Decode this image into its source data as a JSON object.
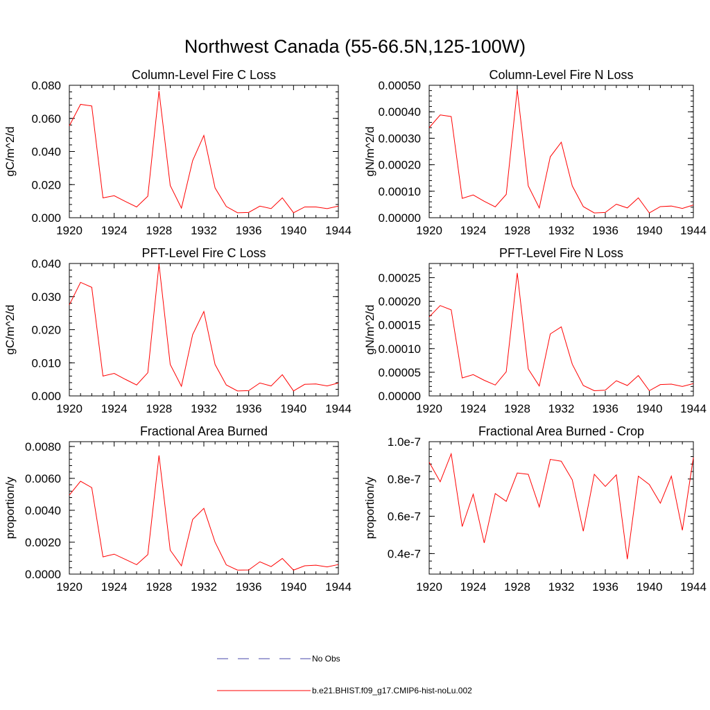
{
  "figure_title": "Northwest Canada (55-66.5N,125-100W)",
  "chart_data": [
    {
      "type": "line",
      "title": "Column-Level Fire C Loss",
      "xlabel": "",
      "ylabel": "gC/m^2/d",
      "xlim": [
        1920,
        1944
      ],
      "ylim": [
        0,
        0.08
      ],
      "xticks": [
        "1920",
        "1924",
        "1928",
        "1932",
        "1936",
        "1940",
        "1944"
      ],
      "yticks": [
        0,
        0.02,
        0.04,
        0.06,
        0.08
      ],
      "ytick_labels": [
        "0.000",
        "0.020",
        "0.040",
        "0.060",
        "0.080"
      ],
      "x": [
        1920,
        1921,
        1922,
        1923,
        1924,
        1925,
        1926,
        1927,
        1928,
        1929,
        1930,
        1931,
        1932,
        1933,
        1934,
        1935,
        1936,
        1937,
        1938,
        1939,
        1940,
        1941,
        1942,
        1943,
        1944
      ],
      "series": [
        {
          "name": "b.e21.BHIST.f09_g17.CMIP6-hist-noLu.002",
          "color": "#ff0000",
          "values": [
            0.0555,
            0.0685,
            0.0675,
            0.012,
            0.0133,
            0.0098,
            0.0065,
            0.013,
            0.0765,
            0.0195,
            0.0058,
            0.0345,
            0.0497,
            0.018,
            0.0068,
            0.003,
            0.0032,
            0.007,
            0.0055,
            0.012,
            0.003,
            0.0065,
            0.0065,
            0.0055,
            0.007
          ]
        }
      ]
    },
    {
      "type": "line",
      "title": "Column-Level Fire N Loss",
      "xlabel": "",
      "ylabel": "gN/m^2/d",
      "xlim": [
        1920,
        1944
      ],
      "ylim": [
        0,
        0.0005
      ],
      "xticks": [
        "1920",
        "1924",
        "1928",
        "1932",
        "1936",
        "1940",
        "1944"
      ],
      "yticks": [
        0,
        0.0001,
        0.0002,
        0.0003,
        0.0004,
        0.0005
      ],
      "ytick_labels": [
        "0.00000",
        "0.00010",
        "0.00020",
        "0.00030",
        "0.00040",
        "0.00050"
      ],
      "x": [
        1920,
        1921,
        1922,
        1923,
        1924,
        1925,
        1926,
        1927,
        1928,
        1929,
        1930,
        1931,
        1932,
        1933,
        1934,
        1935,
        1936,
        1937,
        1938,
        1939,
        1940,
        1941,
        1942,
        1943,
        1944
      ],
      "series": [
        {
          "name": "b.e21.BHIST.f09_g17.CMIP6-hist-noLu.002",
          "color": "#ff0000",
          "values": [
            0.00034,
            0.000388,
            0.000382,
            7.3e-05,
            8.6e-05,
            6.2e-05,
            4.1e-05,
            8.8e-05,
            0.000484,
            0.00012,
            3.7e-05,
            0.00023,
            0.000285,
            0.00012,
            4.2e-05,
            1.8e-05,
            2e-05,
            5.1e-05,
            3.7e-05,
            7.5e-05,
            1.8e-05,
            4.2e-05,
            4.4e-05,
            3.5e-05,
            4.8e-05
          ]
        }
      ]
    },
    {
      "type": "line",
      "title": "PFT-Level Fire C Loss",
      "xlabel": "",
      "ylabel": "gC/m^2/d",
      "xlim": [
        1920,
        1944
      ],
      "ylim": [
        0,
        0.04
      ],
      "xticks": [
        "1920",
        "1924",
        "1928",
        "1932",
        "1936",
        "1940",
        "1944"
      ],
      "yticks": [
        0,
        0.01,
        0.02,
        0.03,
        0.04
      ],
      "ytick_labels": [
        "0.000",
        "0.010",
        "0.020",
        "0.030",
        "0.040"
      ],
      "x": [
        1920,
        1921,
        1922,
        1923,
        1924,
        1925,
        1926,
        1927,
        1928,
        1929,
        1930,
        1931,
        1932,
        1933,
        1934,
        1935,
        1936,
        1937,
        1938,
        1939,
        1940,
        1941,
        1942,
        1943,
        1944
      ],
      "series": [
        {
          "name": "b.e21.BHIST.f09_g17.CMIP6-hist-noLu.002",
          "color": "#ff0000",
          "values": [
            0.0275,
            0.0343,
            0.0328,
            0.006,
            0.0068,
            0.005,
            0.0033,
            0.007,
            0.0398,
            0.0095,
            0.0029,
            0.0185,
            0.0255,
            0.0095,
            0.0033,
            0.0015,
            0.0016,
            0.0039,
            0.003,
            0.0064,
            0.0015,
            0.0035,
            0.0036,
            0.003,
            0.0039
          ]
        }
      ]
    },
    {
      "type": "line",
      "title": "PFT-Level Fire N Loss",
      "xlabel": "",
      "ylabel": "gN/m^2/d",
      "xlim": [
        1920,
        1944
      ],
      "ylim": [
        0,
        0.00028
      ],
      "xticks": [
        "1920",
        "1924",
        "1928",
        "1932",
        "1936",
        "1940",
        "1944"
      ],
      "yticks": [
        0,
        5e-05,
        0.0001,
        0.00015,
        0.0002,
        0.00025
      ],
      "ytick_labels": [
        "0.00000",
        "0.00005",
        "0.00010",
        "0.00015",
        "0.00020",
        "0.00025"
      ],
      "x": [
        1920,
        1921,
        1922,
        1923,
        1924,
        1925,
        1926,
        1927,
        1928,
        1929,
        1930,
        1931,
        1932,
        1933,
        1934,
        1935,
        1936,
        1937,
        1938,
        1939,
        1940,
        1941,
        1942,
        1943,
        1944
      ],
      "series": [
        {
          "name": "b.e21.BHIST.f09_g17.CMIP6-hist-noLu.002",
          "color": "#ff0000",
          "values": [
            0.000167,
            0.000191,
            0.000182,
            3.8e-05,
            4.5e-05,
            3.3e-05,
            2.3e-05,
            5.1e-05,
            0.00026,
            5.7e-05,
            2.1e-05,
            0.000131,
            0.000146,
            6.7e-05,
            2.2e-05,
            1.1e-05,
            1.2e-05,
            3.2e-05,
            2.2e-05,
            4.3e-05,
            1.1e-05,
            2.4e-05,
            2.5e-05,
            2e-05,
            2.6e-05
          ]
        }
      ]
    },
    {
      "type": "line",
      "title": "Fractional Area Burned",
      "xlabel": "",
      "ylabel": "proportion/y",
      "xlim": [
        1920,
        1944
      ],
      "ylim": [
        0,
        0.0083
      ],
      "xticks": [
        "1920",
        "1924",
        "1928",
        "1932",
        "1936",
        "1940",
        "1944"
      ],
      "yticks": [
        0,
        0.002,
        0.004,
        0.006,
        0.008
      ],
      "ytick_labels": [
        "0.0000",
        "0.0020",
        "0.0040",
        "0.0060",
        "0.0080"
      ],
      "x": [
        1920,
        1921,
        1922,
        1923,
        1924,
        1925,
        1926,
        1927,
        1928,
        1929,
        1930,
        1931,
        1932,
        1933,
        1934,
        1935,
        1936,
        1937,
        1938,
        1939,
        1940,
        1941,
        1942,
        1943,
        1944
      ],
      "series": [
        {
          "name": "b.e21.BHIST.f09_g17.CMIP6-hist-noLu.002",
          "color": "#ff0000",
          "values": [
            0.00495,
            0.00582,
            0.00542,
            0.00108,
            0.00125,
            0.00092,
            0.00059,
            0.00122,
            0.00744,
            0.0015,
            0.00052,
            0.00342,
            0.00412,
            0.002,
            0.00058,
            0.00025,
            0.00026,
            0.00077,
            0.00047,
            0.00098,
            0.00025,
            0.00052,
            0.00056,
            0.00045,
            0.0006
          ]
        }
      ]
    },
    {
      "type": "line",
      "title": "Fractional Area Burned - Crop",
      "xlabel": "",
      "ylabel": "proportion/y",
      "xlim": [
        1920,
        1944
      ],
      "ylim": [
        2.9e-08,
        1e-07
      ],
      "xticks": [
        "1920",
        "1924",
        "1928",
        "1932",
        "1936",
        "1940",
        "1944"
      ],
      "yticks": [
        4e-08,
        6e-08,
        8e-08,
        1e-07
      ],
      "ytick_labels": [
        "0.4e-7",
        "0.6e-7",
        "0.8e-7",
        "1.0e-7"
      ],
      "x": [
        1920,
        1921,
        1922,
        1923,
        1924,
        1925,
        1926,
        1927,
        1928,
        1929,
        1930,
        1931,
        1932,
        1933,
        1934,
        1935,
        1936,
        1937,
        1938,
        1939,
        1940,
        1941,
        1942,
        1943,
        1944
      ],
      "series": [
        {
          "name": "b.e21.BHIST.f09_g17.CMIP6-hist-noLu.002",
          "color": "#ff0000",
          "values": [
            8.9e-08,
            7.85e-08,
            9.35e-08,
            5.45e-08,
            7.18e-08,
            4.57e-08,
            7.22e-08,
            6.8e-08,
            8.32e-08,
            8.25e-08,
            6.5e-08,
            9.05e-08,
            8.95e-08,
            7.95e-08,
            5.2e-08,
            8.25e-08,
            7.6e-08,
            8.22e-08,
            3.7e-08,
            8.15e-08,
            7.7e-08,
            6.7e-08,
            8.15e-08,
            5.25e-08,
            9.15e-08
          ]
        }
      ]
    }
  ],
  "legend": [
    {
      "label": "No Obs",
      "style": "dashed",
      "color": "#4444aa"
    },
    {
      "label": "b.e21.BHIST.f09_g17.CMIP6-hist-noLu.002",
      "style": "solid",
      "color": "#ff0000"
    }
  ]
}
